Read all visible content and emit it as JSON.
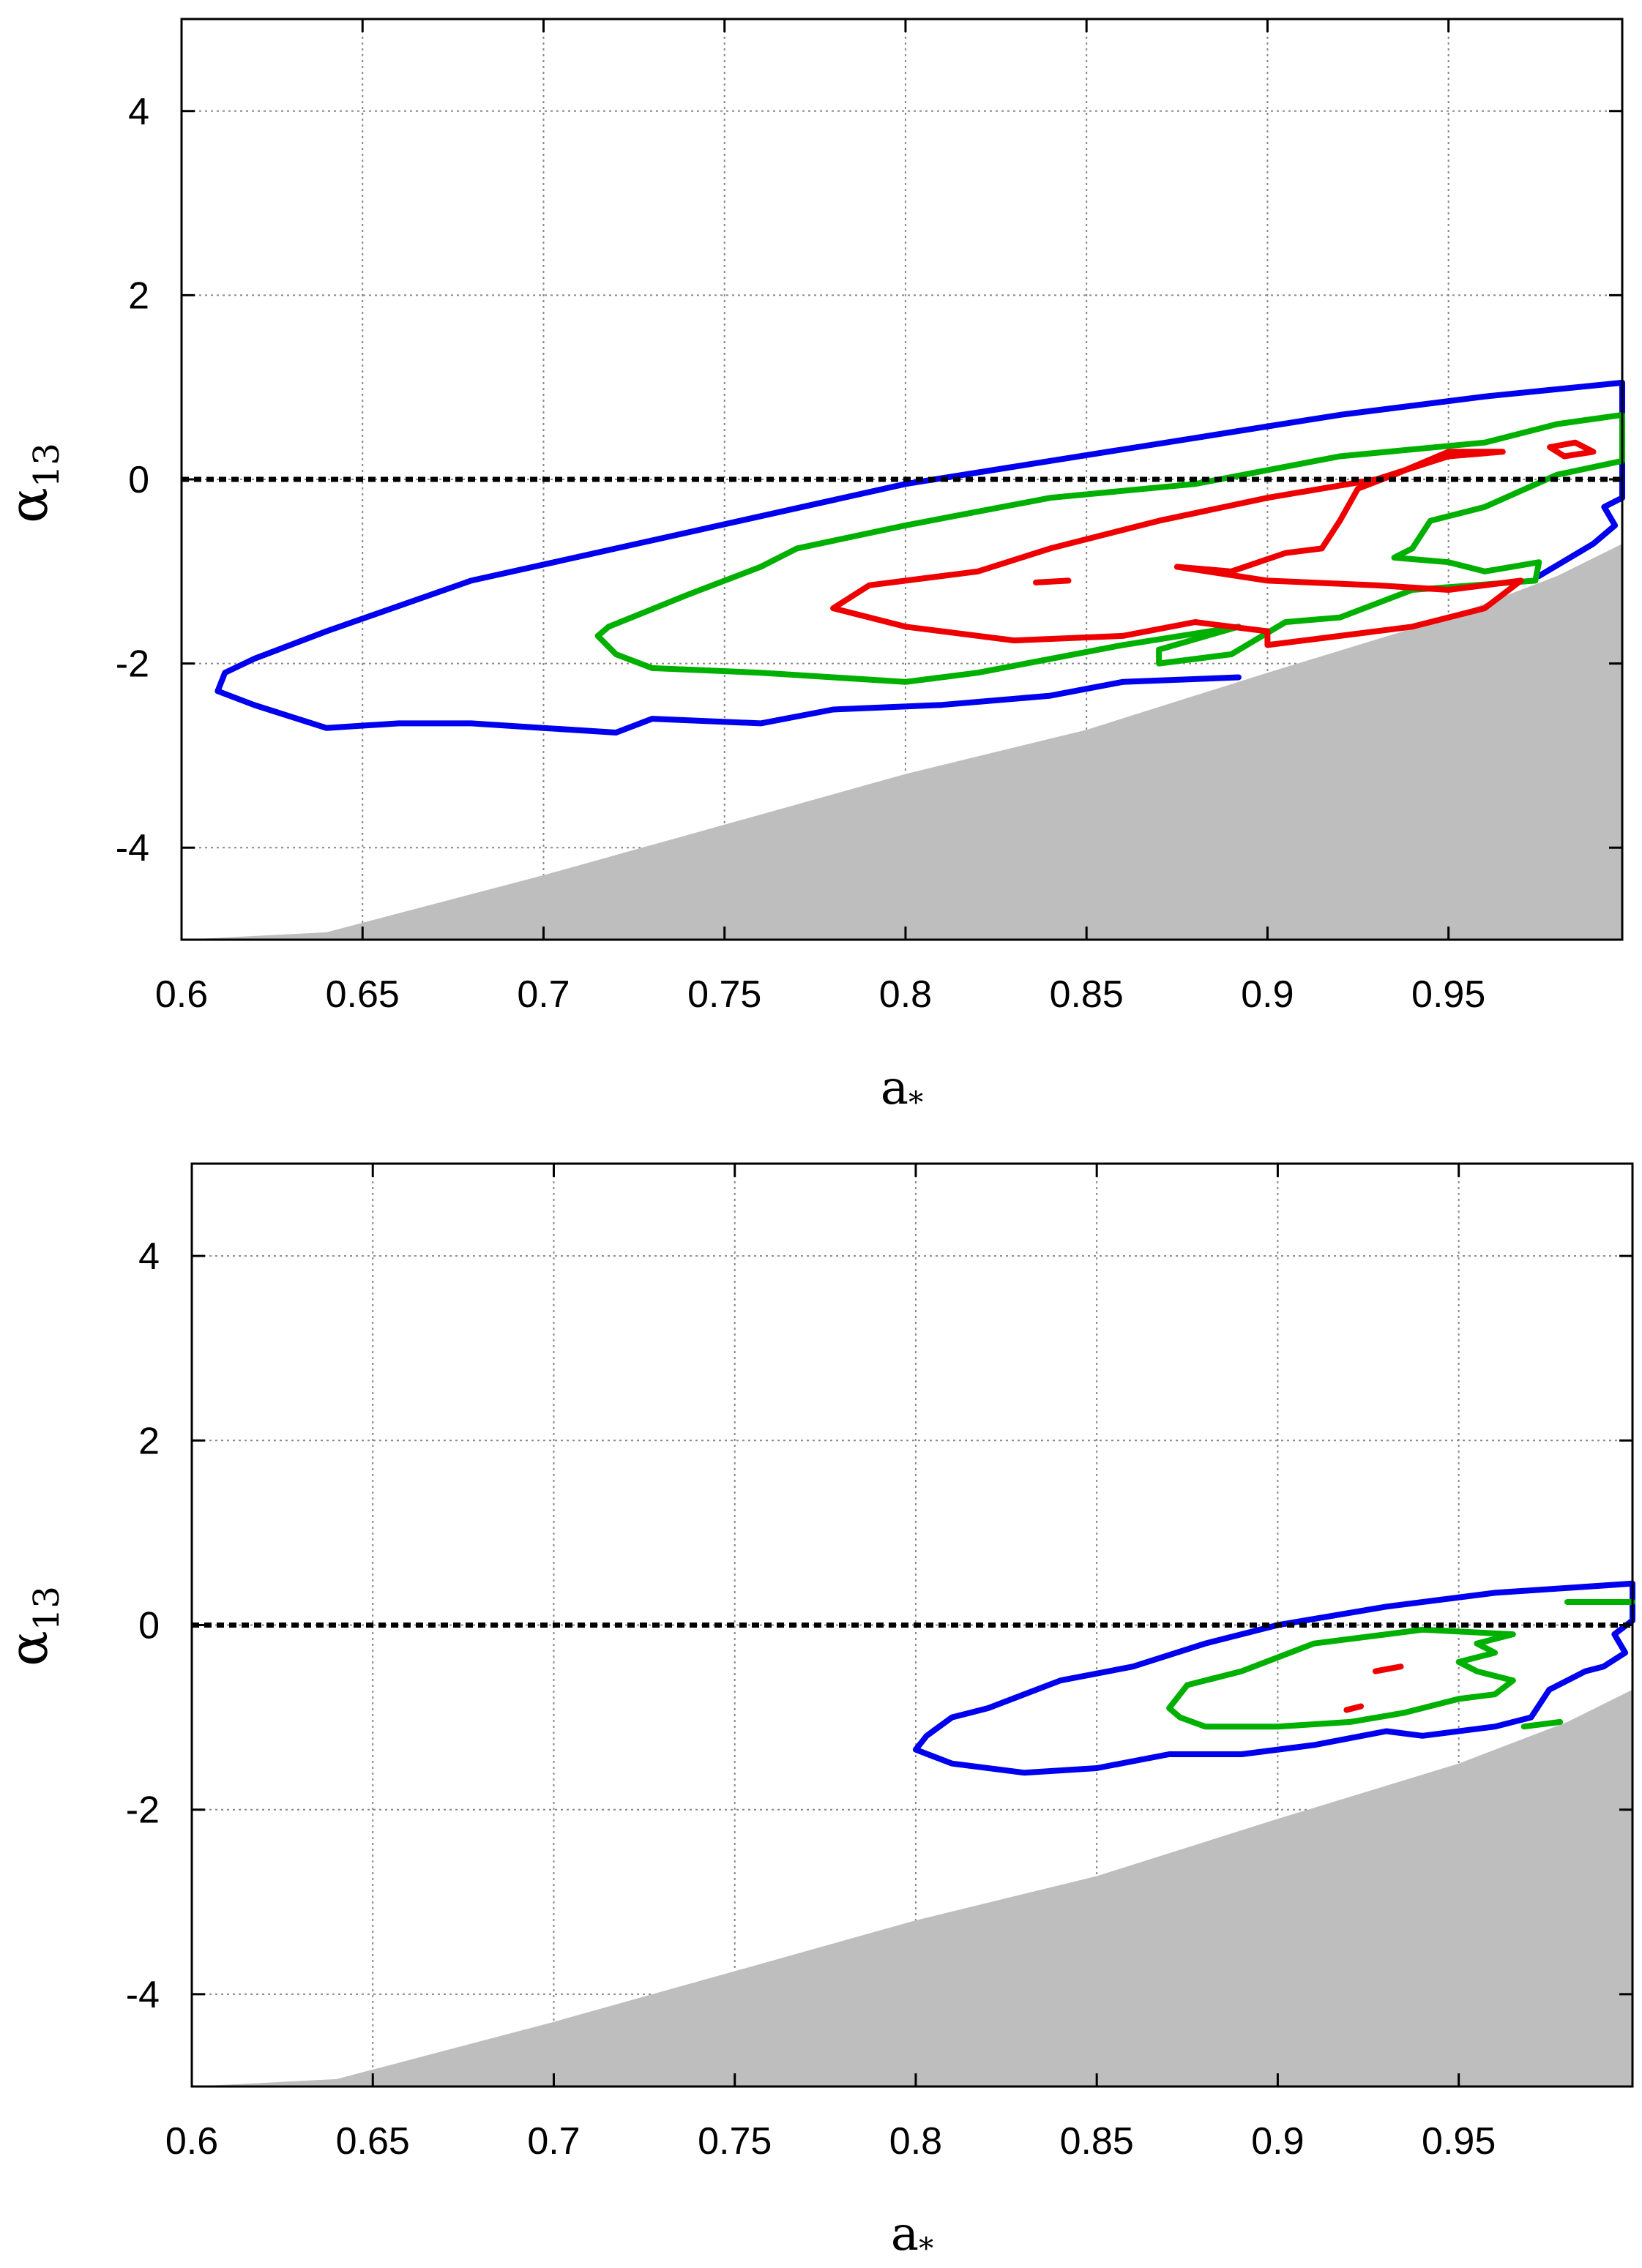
{
  "chart_data": [
    {
      "type": "contour",
      "title": "",
      "xlabel": "a*",
      "ylabel": "α13",
      "xlim": [
        0.6,
        0.998
      ],
      "ylim": [
        -5,
        5
      ],
      "xticks": [
        0.6,
        0.65,
        0.7,
        0.75,
        0.8,
        0.85,
        0.9,
        0.95
      ],
      "yticks": [
        -4,
        -2,
        0,
        2,
        4
      ],
      "grid": true,
      "reference_line": 0,
      "excluded_region": {
        "color": "#bebebe",
        "boundary": [
          [
            0.6,
            -5.0
          ],
          [
            0.64,
            -4.92
          ],
          [
            0.7,
            -4.3
          ],
          [
            0.75,
            -3.75
          ],
          [
            0.8,
            -3.2
          ],
          [
            0.85,
            -2.72
          ],
          [
            0.9,
            -2.1
          ],
          [
            0.95,
            -1.5
          ],
          [
            0.98,
            -1.05
          ],
          [
            0.998,
            -0.7
          ]
        ]
      },
      "series": [
        {
          "name": "blue",
          "color": "#0000ee",
          "points": [
            [
              0.61,
              -2.3
            ],
            [
              0.612,
              -2.1
            ],
            [
              0.62,
              -1.95
            ],
            [
              0.64,
              -1.65
            ],
            [
              0.68,
              -1.1
            ],
            [
              0.72,
              -0.75
            ],
            [
              0.76,
              -0.4
            ],
            [
              0.8,
              -0.05
            ],
            [
              0.84,
              0.2
            ],
            [
              0.88,
              0.45
            ],
            [
              0.92,
              0.7
            ],
            [
              0.96,
              0.9
            ],
            [
              0.998,
              1.05
            ],
            [
              0.998,
              -0.2
            ],
            [
              0.993,
              -0.3
            ],
            [
              0.996,
              -0.5
            ],
            [
              0.99,
              -0.7
            ],
            [
              0.975,
              -1.05
            ]
          ]
        },
        {
          "name": "blue-lower",
          "color": "#0000ee",
          "points": [
            [
              0.892,
              -2.15
            ],
            [
              0.86,
              -2.2
            ],
            [
              0.84,
              -2.35
            ],
            [
              0.81,
              -2.45
            ],
            [
              0.78,
              -2.5
            ],
            [
              0.76,
              -2.65
            ],
            [
              0.73,
              -2.6
            ],
            [
              0.72,
              -2.75
            ],
            [
              0.7,
              -2.7
            ],
            [
              0.68,
              -2.65
            ],
            [
              0.66,
              -2.65
            ],
            [
              0.64,
              -2.7
            ],
            [
              0.62,
              -2.45
            ],
            [
              0.61,
              -2.3
            ]
          ]
        },
        {
          "name": "green",
          "color": "#00b000",
          "points": [
            [
              0.718,
              -1.6
            ],
            [
              0.74,
              -1.25
            ],
            [
              0.76,
              -0.95
            ],
            [
              0.77,
              -0.75
            ],
            [
              0.8,
              -0.5
            ],
            [
              0.84,
              -0.2
            ],
            [
              0.88,
              -0.05
            ],
            [
              0.92,
              0.25
            ],
            [
              0.96,
              0.4
            ],
            [
              0.98,
              0.6
            ],
            [
              0.998,
              0.7
            ],
            [
              0.998,
              0.2
            ],
            [
              0.98,
              0.05
            ],
            [
              0.96,
              -0.3
            ],
            [
              0.945,
              -0.45
            ],
            [
              0.94,
              -0.75
            ],
            [
              0.935,
              -0.85
            ],
            [
              0.95,
              -0.9
            ],
            [
              0.96,
              -1.0
            ],
            [
              0.975,
              -0.9
            ],
            [
              0.974,
              -1.1
            ],
            [
              0.94,
              -1.2
            ],
            [
              0.92,
              -1.5
            ],
            [
              0.905,
              -1.55
            ],
            [
              0.89,
              -1.9
            ],
            [
              0.87,
              -2.0
            ],
            [
              0.87,
              -1.85
            ],
            [
              0.892,
              -1.6
            ]
          ]
        },
        {
          "name": "green-lower",
          "color": "#00b000",
          "points": [
            [
              0.892,
              -1.6
            ],
            [
              0.86,
              -1.8
            ],
            [
              0.84,
              -1.95
            ],
            [
              0.82,
              -2.1
            ],
            [
              0.8,
              -2.2
            ],
            [
              0.78,
              -2.15
            ],
            [
              0.76,
              -2.1
            ],
            [
              0.73,
              -2.05
            ],
            [
              0.72,
              -1.9
            ],
            [
              0.715,
              -1.7
            ],
            [
              0.718,
              -1.6
            ]
          ]
        },
        {
          "name": "red",
          "color": "#ee0000",
          "points": [
            [
              0.79,
              -1.15
            ],
            [
              0.82,
              -1.0
            ],
            [
              0.84,
              -0.75
            ],
            [
              0.87,
              -0.45
            ],
            [
              0.9,
              -0.2
            ],
            [
              0.93,
              0.0
            ],
            [
              0.95,
              0.25
            ],
            [
              0.965,
              0.3
            ],
            [
              0.95,
              0.3
            ],
            [
              0.935,
              0.05
            ],
            [
              0.925,
              -0.1
            ],
            [
              0.92,
              -0.45
            ],
            [
              0.915,
              -0.75
            ],
            [
              0.905,
              -0.8
            ],
            [
              0.89,
              -1.0
            ],
            [
              0.875,
              -0.95
            ],
            [
              0.9,
              -1.1
            ],
            [
              0.93,
              -1.15
            ],
            [
              0.95,
              -1.2
            ],
            [
              0.97,
              -1.1
            ],
            [
              0.96,
              -1.4
            ],
            [
              0.94,
              -1.6
            ],
            [
              0.92,
              -1.7
            ],
            [
              0.9,
              -1.8
            ],
            [
              0.9,
              -1.65
            ],
            [
              0.88,
              -1.55
            ],
            [
              0.86,
              -1.7
            ],
            [
              0.83,
              -1.75
            ],
            [
              0.8,
              -1.6
            ],
            [
              0.78,
              -1.4
            ],
            [
              0.79,
              -1.15
            ]
          ]
        },
        {
          "name": "red-loop",
          "color": "#ee0000",
          "points": [
            [
              0.978,
              0.35
            ],
            [
              0.985,
              0.4
            ],
            [
              0.99,
              0.3
            ],
            [
              0.982,
              0.25
            ],
            [
              0.978,
              0.35
            ]
          ]
        },
        {
          "name": "red-dot",
          "color": "#ee0000",
          "points": [
            [
              0.836,
              -1.12
            ],
            [
              0.845,
              -1.1
            ]
          ]
        }
      ]
    },
    {
      "type": "contour",
      "title": "",
      "xlabel": "a*",
      "ylabel": "α13",
      "xlim": [
        0.6,
        0.998
      ],
      "ylim": [
        -5,
        5
      ],
      "xticks": [
        0.6,
        0.65,
        0.7,
        0.75,
        0.8,
        0.85,
        0.9,
        0.95
      ],
      "yticks": [
        -4,
        -2,
        0,
        2,
        4
      ],
      "grid": true,
      "reference_line": 0,
      "excluded_region": {
        "color": "#bebebe",
        "boundary": [
          [
            0.6,
            -5.0
          ],
          [
            0.64,
            -4.92
          ],
          [
            0.7,
            -4.3
          ],
          [
            0.75,
            -3.75
          ],
          [
            0.8,
            -3.2
          ],
          [
            0.85,
            -2.72
          ],
          [
            0.9,
            -2.1
          ],
          [
            0.95,
            -1.5
          ],
          [
            0.98,
            -1.05
          ],
          [
            0.998,
            -0.7
          ]
        ]
      },
      "series": [
        {
          "name": "blue",
          "color": "#0000ee",
          "points": [
            [
              0.803,
              -1.2
            ],
            [
              0.81,
              -1.0
            ],
            [
              0.82,
              -0.9
            ],
            [
              0.84,
              -0.6
            ],
            [
              0.86,
              -0.45
            ],
            [
              0.88,
              -0.2
            ],
            [
              0.9,
              0.0
            ],
            [
              0.93,
              0.2
            ],
            [
              0.96,
              0.35
            ],
            [
              0.998,
              0.45
            ],
            [
              0.998,
              0.05
            ],
            [
              0.993,
              -0.1
            ],
            [
              0.996,
              -0.3
            ],
            [
              0.99,
              -0.45
            ],
            [
              0.985,
              -0.5
            ],
            [
              0.975,
              -0.7
            ],
            [
              0.97,
              -1.0
            ],
            [
              0.96,
              -1.1
            ],
            [
              0.94,
              -1.2
            ],
            [
              0.93,
              -1.15
            ],
            [
              0.91,
              -1.3
            ],
            [
              0.89,
              -1.4
            ],
            [
              0.87,
              -1.4
            ],
            [
              0.85,
              -1.55
            ],
            [
              0.83,
              -1.6
            ],
            [
              0.81,
              -1.5
            ],
            [
              0.8,
              -1.35
            ],
            [
              0.803,
              -1.2
            ]
          ]
        },
        {
          "name": "green",
          "color": "#00b000",
          "points": [
            [
              0.87,
              -0.9
            ],
            [
              0.875,
              -0.65
            ],
            [
              0.89,
              -0.5
            ],
            [
              0.91,
              -0.2
            ],
            [
              0.94,
              -0.05
            ],
            [
              0.965,
              -0.1
            ],
            [
              0.955,
              -0.2
            ],
            [
              0.96,
              -0.3
            ],
            [
              0.95,
              -0.4
            ],
            [
              0.955,
              -0.5
            ],
            [
              0.965,
              -0.6
            ],
            [
              0.96,
              -0.75
            ],
            [
              0.95,
              -0.8
            ],
            [
              0.935,
              -0.95
            ],
            [
              0.92,
              -1.05
            ],
            [
              0.9,
              -1.1
            ],
            [
              0.88,
              -1.1
            ],
            [
              0.873,
              -1.0
            ],
            [
              0.87,
              -0.9
            ]
          ]
        },
        {
          "name": "green-bar",
          "color": "#00b000",
          "points": [
            [
              0.98,
              0.25
            ],
            [
              0.998,
              0.25
            ]
          ]
        },
        {
          "name": "green-tail",
          "color": "#00b000",
          "points": [
            [
              0.968,
              -1.1
            ],
            [
              0.978,
              -1.05
            ]
          ]
        },
        {
          "name": "red-dot-1",
          "color": "#ee0000",
          "points": [
            [
              0.927,
              -0.5
            ],
            [
              0.934,
              -0.45
            ]
          ]
        },
        {
          "name": "red-dot-2",
          "color": "#ee0000",
          "points": [
            [
              0.919,
              -0.92
            ],
            [
              0.923,
              -0.88
            ]
          ]
        }
      ]
    }
  ]
}
